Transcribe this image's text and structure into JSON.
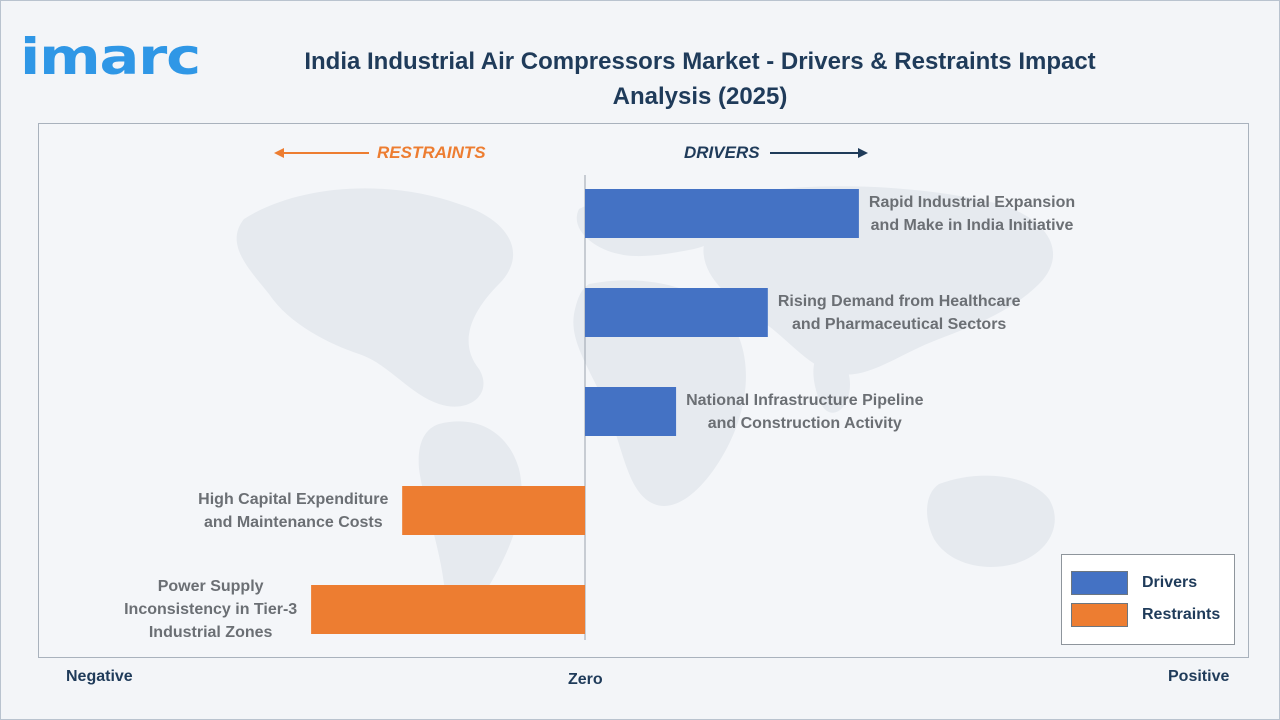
{
  "brand": {
    "logo_text": "imarc"
  },
  "title": "India Industrial Air Compressors Market - Drivers & Restraints Impact Analysis (2025)",
  "direction_labels": {
    "restraints": "RESTRAINTS",
    "drivers": "DRIVERS"
  },
  "colors": {
    "drivers": "#4472c4",
    "restraints": "#ed7d31",
    "title": "#1f3b5a",
    "logo": "#2f97e6"
  },
  "chart_data": {
    "type": "bar",
    "orientation": "horizontal",
    "title": "India Industrial Air Compressors Market - Drivers & Restraints Impact Analysis (2025)",
    "x_axis_labels": {
      "negative": "Negative",
      "zero": "Zero",
      "positive": "Positive"
    },
    "xlim": [
      -1,
      1
    ],
    "categories": [
      "Rapid Industrial Expansion and Make in India Initiative",
      "Rising Demand from Healthcare and Pharmaceutical Sectors",
      "National Infrastructure Pipeline and Construction Activity",
      "High Capital Expenditure and Maintenance Costs",
      "Power Supply Inconsistency in Tier-3 Industrial Zones"
    ],
    "series": [
      {
        "name": "Drivers",
        "values": [
          0.415,
          0.277,
          0.138,
          0,
          0
        ]
      },
      {
        "name": "Restraints",
        "values": [
          0,
          0,
          0,
          -0.277,
          -0.415
        ]
      }
    ],
    "legend": {
      "position": "bottom-right",
      "entries": [
        "Drivers",
        "Restraints"
      ]
    },
    "grid": false
  }
}
